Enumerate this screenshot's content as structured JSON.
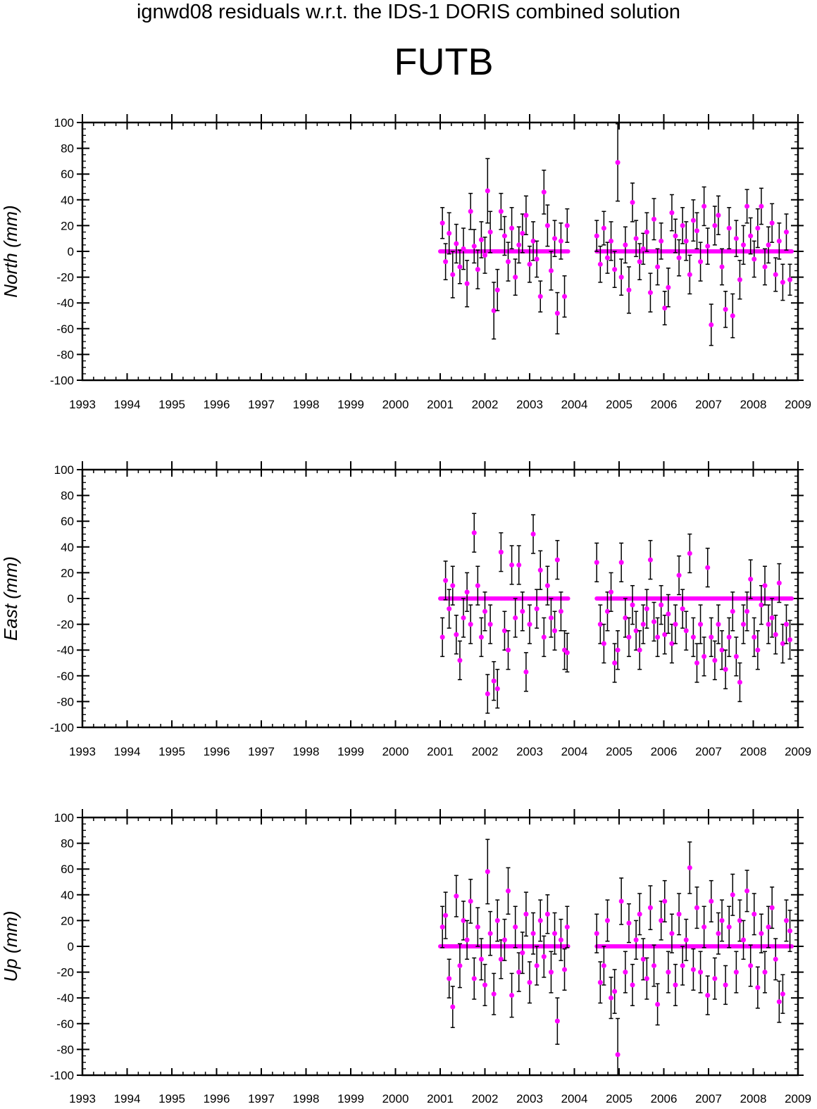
{
  "header": {
    "title": "ignwd08 residuals w.r.t. the IDS-1 DORIS combined solution",
    "station": "FUTB"
  },
  "colors": {
    "marker": "#ff00ff",
    "errorbar": "#000000",
    "axis": "#000000",
    "background": "#ffffff"
  },
  "chart_data": [
    {
      "type": "scatter",
      "title": "",
      "xlabel": "",
      "ylabel": "North (mm)",
      "xlim": [
        1993,
        2009
      ],
      "ylim": [
        -100,
        100
      ],
      "grid": false,
      "x_ticks": [
        "1993",
        "1994",
        "1995",
        "1996",
        "1997",
        "1998",
        "1999",
        "2000",
        "2001",
        "2002",
        "2003",
        "2004",
        "2005",
        "2006",
        "2007",
        "2008",
        "2009"
      ],
      "y_ticks": [
        "100",
        "80",
        "60",
        "40",
        "20",
        "0",
        "-20",
        "-40",
        "-60",
        "-80",
        "-100"
      ],
      "series": [
        {
          "x": [
            2001.05,
            2001.12,
            2001.2,
            2001.28,
            2001.36,
            2001.44,
            2001.52,
            2001.6,
            2001.68,
            2001.76,
            2001.84,
            2001.92,
            2002.0,
            2002.06,
            2002.12,
            2002.2,
            2002.28,
            2002.36,
            2002.44,
            2002.52,
            2002.6,
            2002.68,
            2002.76,
            2002.84,
            2002.92,
            2003.0,
            2003.08,
            2003.16,
            2003.24,
            2003.32,
            2003.4,
            2003.48,
            2003.56,
            2003.62,
            2003.7,
            2003.78,
            2003.84,
            2004.5,
            2004.58,
            2004.66,
            2004.74,
            2004.82,
            2004.9,
            2004.97,
            2005.05,
            2005.14,
            2005.22,
            2005.3,
            2005.38,
            2005.46,
            2005.54,
            2005.62,
            2005.7,
            2005.78,
            2005.86,
            2005.94,
            2006.02,
            2006.1,
            2006.18,
            2006.26,
            2006.34,
            2006.42,
            2006.5,
            2006.58,
            2006.66,
            2006.74,
            2006.82,
            2006.9,
            2006.98,
            2007.06,
            2007.14,
            2007.22,
            2007.3,
            2007.38,
            2007.46,
            2007.54,
            2007.62,
            2007.7,
            2007.78,
            2007.86,
            2007.94,
            2008.02,
            2008.1,
            2008.18,
            2008.26,
            2008.34,
            2008.42,
            2008.5,
            2008.58,
            2008.66,
            2008.74,
            2008.82
          ],
          "y": [
            22,
            -8,
            14,
            -18,
            6,
            -12,
            2,
            -25,
            31,
            4,
            -14,
            9,
            -3,
            47,
            15,
            -46,
            -30,
            31,
            12,
            -8,
            18,
            -20,
            5,
            14,
            28,
            -10,
            8,
            -6,
            -35,
            46,
            20,
            -15,
            10,
            -48,
            8,
            -35,
            20,
            12,
            -10,
            18,
            -5,
            8,
            -14,
            69,
            -20,
            5,
            -30,
            38,
            10,
            -8,
            2,
            15,
            -32,
            25,
            -12,
            8,
            -44,
            -28,
            30,
            12,
            -5,
            20,
            8,
            -18,
            24,
            16,
            -8,
            35,
            4,
            -57,
            20,
            28,
            -12,
            -45,
            18,
            -50,
            10,
            -22,
            5,
            35,
            12,
            -6,
            18,
            35,
            -12,
            5,
            22,
            -18,
            8,
            -24,
            15,
            -22
          ],
          "err": [
            12,
            14,
            16,
            18,
            15,
            13,
            16,
            18,
            14,
            13,
            15,
            14,
            14,
            25,
            16,
            22,
            16,
            14,
            15,
            15,
            16,
            14,
            14,
            15,
            15,
            14,
            15,
            14,
            12,
            17,
            16,
            15,
            14,
            16,
            14,
            16,
            13,
            12,
            14,
            13,
            12,
            15,
            14,
            30,
            14,
            14,
            18,
            15,
            14,
            14,
            12,
            15,
            15,
            16,
            14,
            14,
            13,
            15,
            14,
            13,
            14,
            14,
            15,
            15,
            16,
            14,
            15,
            15,
            14,
            16,
            15,
            15,
            14,
            14,
            16,
            17,
            14,
            15,
            15,
            13,
            14,
            14,
            15,
            14,
            14,
            14,
            15,
            13,
            14,
            14,
            14,
            12
          ]
        }
      ]
    },
    {
      "type": "scatter",
      "title": "",
      "xlabel": "",
      "ylabel": "East (mm)",
      "xlim": [
        1993,
        2009
      ],
      "ylim": [
        -100,
        100
      ],
      "grid": false,
      "x_ticks": [
        "1993",
        "1994",
        "1995",
        "1996",
        "1997",
        "1998",
        "1999",
        "2000",
        "2001",
        "2002",
        "2003",
        "2004",
        "2005",
        "2006",
        "2007",
        "2008",
        "2009"
      ],
      "y_ticks": [
        "100",
        "80",
        "60",
        "40",
        "20",
        "0",
        "-20",
        "-40",
        "-60",
        "-80",
        "-100"
      ],
      "series": [
        {
          "x": [
            2001.05,
            2001.12,
            2001.2,
            2001.28,
            2001.36,
            2001.44,
            2001.52,
            2001.6,
            2001.68,
            2001.76,
            2001.84,
            2001.92,
            2002.0,
            2002.06,
            2002.12,
            2002.2,
            2002.28,
            2002.36,
            2002.44,
            2002.52,
            2002.6,
            2002.68,
            2002.76,
            2002.84,
            2002.92,
            2003.0,
            2003.08,
            2003.16,
            2003.24,
            2003.32,
            2003.4,
            2003.48,
            2003.56,
            2003.62,
            2003.7,
            2003.78,
            2003.84,
            2004.5,
            2004.58,
            2004.66,
            2004.74,
            2004.82,
            2004.9,
            2004.97,
            2005.05,
            2005.14,
            2005.22,
            2005.3,
            2005.38,
            2005.46,
            2005.54,
            2005.62,
            2005.7,
            2005.78,
            2005.86,
            2005.94,
            2006.02,
            2006.1,
            2006.18,
            2006.26,
            2006.34,
            2006.42,
            2006.5,
            2006.58,
            2006.66,
            2006.74,
            2006.82,
            2006.9,
            2006.98,
            2007.06,
            2007.14,
            2007.22,
            2007.3,
            2007.38,
            2007.46,
            2007.54,
            2007.62,
            2007.7,
            2007.78,
            2007.86,
            2007.94,
            2008.02,
            2008.1,
            2008.18,
            2008.26,
            2008.34,
            2008.42,
            2008.5,
            2008.58,
            2008.66,
            2008.74,
            2008.82
          ],
          "y": [
            -30,
            14,
            -8,
            10,
            -28,
            -48,
            -15,
            5,
            -20,
            51,
            10,
            -30,
            -10,
            -74,
            -20,
            -64,
            -70,
            36,
            -25,
            -40,
            26,
            -15,
            26,
            -10,
            -57,
            -20,
            50,
            -8,
            22,
            -30,
            10,
            -15,
            -25,
            30,
            -10,
            -40,
            -42,
            28,
            -20,
            -35,
            -10,
            5,
            -50,
            -40,
            28,
            -15,
            -30,
            -5,
            -25,
            -40,
            -20,
            -8,
            30,
            -18,
            -30,
            -5,
            -28,
            -12,
            -35,
            -20,
            18,
            -8,
            -25,
            35,
            -30,
            -50,
            -20,
            -45,
            24,
            -30,
            -48,
            -20,
            -40,
            -55,
            -30,
            -10,
            -45,
            -65,
            -20,
            -10,
            15,
            -30,
            -40,
            -5,
            10,
            -20,
            -15,
            -28,
            12,
            -35,
            -20,
            -32
          ]
        }
      ]
    },
    {
      "type": "scatter",
      "title": "",
      "xlabel": "",
      "ylabel": "Up (mm)",
      "xlim": [
        1993,
        2009
      ],
      "ylim": [
        -100,
        100
      ],
      "grid": false,
      "x_ticks": [
        "1993",
        "1994",
        "1995",
        "1996",
        "1997",
        "1998",
        "1999",
        "2000",
        "2001",
        "2002",
        "2003",
        "2004",
        "2005",
        "2006",
        "2007",
        "2008",
        "2009"
      ],
      "y_ticks": [
        "100",
        "80",
        "60",
        "40",
        "20",
        "0",
        "-20",
        "-40",
        "-60",
        "-80",
        "-100"
      ],
      "series": [
        {
          "x": [
            2001.05,
            2001.12,
            2001.2,
            2001.28,
            2001.36,
            2001.44,
            2001.52,
            2001.6,
            2001.68,
            2001.76,
            2001.84,
            2001.92,
            2002.0,
            2002.06,
            2002.12,
            2002.2,
            2002.28,
            2002.36,
            2002.44,
            2002.52,
            2002.6,
            2002.68,
            2002.76,
            2002.84,
            2002.92,
            2003.0,
            2003.08,
            2003.16,
            2003.24,
            2003.32,
            2003.4,
            2003.48,
            2003.56,
            2003.62,
            2003.7,
            2003.78,
            2003.84,
            2004.5,
            2004.58,
            2004.66,
            2004.74,
            2004.82,
            2004.9,
            2004.97,
            2005.05,
            2005.14,
            2005.22,
            2005.3,
            2005.38,
            2005.46,
            2005.54,
            2005.62,
            2005.7,
            2005.78,
            2005.86,
            2005.94,
            2006.02,
            2006.1,
            2006.18,
            2006.26,
            2006.34,
            2006.42,
            2006.5,
            2006.58,
            2006.66,
            2006.74,
            2006.82,
            2006.9,
            2006.98,
            2007.06,
            2007.14,
            2007.22,
            2007.3,
            2007.38,
            2007.46,
            2007.54,
            2007.62,
            2007.7,
            2007.78,
            2007.86,
            2007.94,
            2008.02,
            2008.1,
            2008.18,
            2008.26,
            2008.34,
            2008.42,
            2008.5,
            2008.58,
            2008.66,
            2008.74,
            2008.82
          ],
          "y": [
            15,
            24,
            -25,
            -47,
            39,
            -15,
            20,
            5,
            35,
            -25,
            15,
            -10,
            -30,
            58,
            10,
            -37,
            20,
            -10,
            5,
            43,
            -38,
            15,
            -20,
            -5,
            25,
            -28,
            10,
            -15,
            20,
            -8,
            25,
            -20,
            10,
            -58,
            5,
            -18,
            15,
            10,
            -28,
            -15,
            20,
            -40,
            -35,
            -84,
            35,
            -20,
            18,
            -30,
            5,
            25,
            -10,
            -25,
            30,
            -15,
            -45,
            20,
            35,
            -20,
            10,
            -30,
            25,
            -15,
            5,
            61,
            -18,
            30,
            -20,
            15,
            -38,
            35,
            -25,
            10,
            20,
            -30,
            15,
            40,
            -20,
            20,
            5,
            43,
            -15,
            25,
            -32,
            10,
            -20,
            15,
            30,
            -10,
            -43,
            -37,
            20,
            12
          ],
          "err": [
            16,
            18,
            15,
            16,
            16,
            17,
            15,
            15,
            17,
            16,
            15,
            16,
            16,
            25,
            17,
            16,
            16,
            15,
            16,
            18,
            17,
            16,
            15,
            16,
            17,
            16,
            16,
            15,
            16,
            16,
            15,
            16,
            16,
            18,
            16,
            16,
            16,
            15,
            16,
            15,
            16,
            16,
            17,
            28,
            18,
            16,
            15,
            16,
            15,
            16,
            16,
            16,
            17,
            16,
            16,
            15,
            16,
            16,
            15,
            16,
            16,
            15,
            16,
            20,
            16,
            16,
            16,
            16,
            15,
            16,
            16,
            16,
            16,
            15,
            16,
            16,
            16,
            16,
            15,
            16,
            16,
            16,
            16,
            15,
            16,
            16,
            16,
            16,
            16,
            15,
            16,
            16
          ]
        }
      ]
    }
  ]
}
